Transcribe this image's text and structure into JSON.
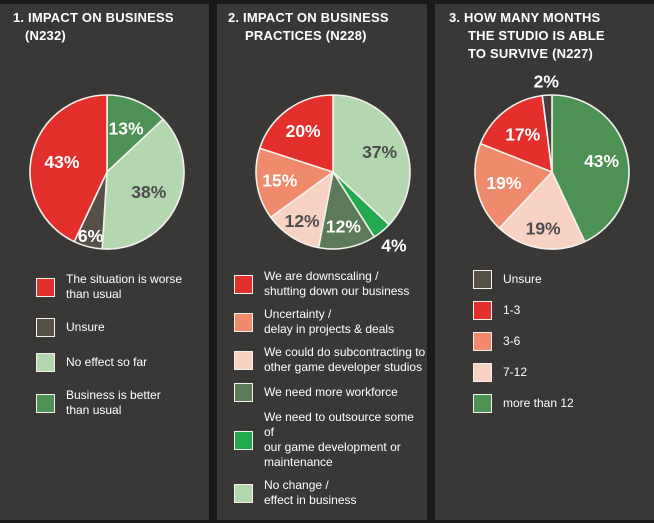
{
  "colors": {
    "background": "#3a3837",
    "divider": "#1c1a19",
    "pie_outline": "#f2f1ec",
    "label_light": "#ffffff",
    "label_dark": "#4d4d4d"
  },
  "chart_data": [
    {
      "type": "pie",
      "title": "1. IMPACT ON BUSINESS (N232)",
      "title_lines": [
        "1. IMPACT ON BUSINESS",
        "(N232)"
      ],
      "sample_size": "N232",
      "start_angle_deg": 0,
      "direction": "clockwise",
      "slices": [
        {
          "label": "Business is better than usual",
          "value": 13,
          "color": "#4d9254",
          "text_color": "#ffffff",
          "label_radius": 0.62,
          "label_outside": false
        },
        {
          "label": "No effect so far",
          "value": 38,
          "color": "#b3d7ae",
          "text_color": "#4d4d4d",
          "label_radius": 0.6,
          "label_outside": false
        },
        {
          "label": "Unsure",
          "value": 6,
          "color": "#575048",
          "text_color": "#ffffff",
          "label_radius": 0.86,
          "label_outside": false
        },
        {
          "label": "The situation is worse than usual",
          "value": 43,
          "color": "#e4302d",
          "text_color": "#ffffff",
          "label_radius": 0.6,
          "label_outside": false
        }
      ],
      "legend": [
        {
          "label": "The situation is worse\nthan usual",
          "color": "#e4302d"
        },
        {
          "label": "Unsure",
          "color": "#575048"
        },
        {
          "label": "No effect so far",
          "color": "#b3d7ae"
        },
        {
          "label": "Business is better\nthan usual",
          "color": "#4d9254"
        }
      ]
    },
    {
      "type": "pie",
      "title": "2. IMPACT ON BUSINESS PRACTICES (N228)",
      "title_lines": [
        "2. IMPACT ON BUSINESS",
        "PRACTICES (N228)"
      ],
      "sample_size": "N228",
      "start_angle_deg": 0,
      "direction": "clockwise",
      "slices": [
        {
          "label": "No change / effect in business",
          "value": 37,
          "color": "#b3d7ae",
          "text_color": "#4d4d4d",
          "label_radius": 0.66,
          "label_outside": false
        },
        {
          "label": "We need to outsource some of our game development or maintenance",
          "value": 4,
          "color": "#24a94e",
          "text_color": "#ffffff",
          "label_radius": 1.24,
          "label_outside": true
        },
        {
          "label": "We need more workforce",
          "value": 12,
          "color": "#5c7a57",
          "text_color": "#ffffff",
          "label_radius": 0.72,
          "label_outside": false
        },
        {
          "label": "We could do subcontracting to other game developer studios",
          "value": 12,
          "color": "#f8d3c3",
          "text_color": "#4d4d4d",
          "label_radius": 0.75,
          "label_outside": false
        },
        {
          "label": "Uncertainty / delay in projects & deals",
          "value": 15,
          "color": "#f08a6c",
          "text_color": "#ffffff",
          "label_radius": 0.7,
          "label_outside": false
        },
        {
          "label": "We are downscaling / shutting down our business",
          "value": 20,
          "color": "#e4302d",
          "text_color": "#ffffff",
          "label_radius": 0.66,
          "label_outside": false
        }
      ],
      "legend": [
        {
          "label": "We are downscaling /\nshutting down our business",
          "color": "#e4302d"
        },
        {
          "label": "Uncertainty /\ndelay in projects & deals",
          "color": "#f08a6c"
        },
        {
          "label": "We could do subcontracting to\nother game developer studios",
          "color": "#f8d3c3"
        },
        {
          "label": "We need more workforce",
          "color": "#5c7a57"
        },
        {
          "label": "We need to outsource some of\nour game development or\nmaintenance",
          "color": "#24a94e"
        },
        {
          "label": "No change /\neffect in business",
          "color": "#b3d7ae"
        }
      ]
    },
    {
      "type": "pie",
      "title": "3. HOW MANY MONTHS THE STUDIO IS ABLE TO SURVIVE (N227)",
      "title_lines": [
        "3. HOW MANY MONTHS",
        "THE STUDIO IS ABLE",
        "TO SURVIVE  (N227)"
      ],
      "sample_size": "N227",
      "start_angle_deg": 0,
      "direction": "clockwise",
      "slices": [
        {
          "label": "more than 12",
          "value": 43,
          "color": "#4d9254",
          "text_color": "#ffffff",
          "label_radius": 0.66,
          "label_outside": false
        },
        {
          "label": "7-12",
          "value": 19,
          "color": "#f8d3c3",
          "text_color": "#4d4d4d",
          "label_radius": 0.74,
          "label_outside": false
        },
        {
          "label": "3-6",
          "value": 19,
          "color": "#f08a6c",
          "text_color": "#ffffff",
          "label_radius": 0.64,
          "label_outside": false
        },
        {
          "label": "1-3",
          "value": 17,
          "color": "#e4302d",
          "text_color": "#ffffff",
          "label_radius": 0.62,
          "label_outside": false
        },
        {
          "label": "Unsure",
          "value": 2,
          "color": "#45403a",
          "text_color": "#ffffff",
          "label_radius": 1.18,
          "label_outside": true
        }
      ],
      "legend": [
        {
          "label": "Unsure",
          "color": "#575048"
        },
        {
          "label": "1-3",
          "color": "#e4302d"
        },
        {
          "label": "3-6",
          "color": "#f08a6c"
        },
        {
          "label": "7-12",
          "color": "#f8d3c3"
        },
        {
          "label": "more than 12",
          "color": "#4d9254"
        }
      ]
    }
  ]
}
